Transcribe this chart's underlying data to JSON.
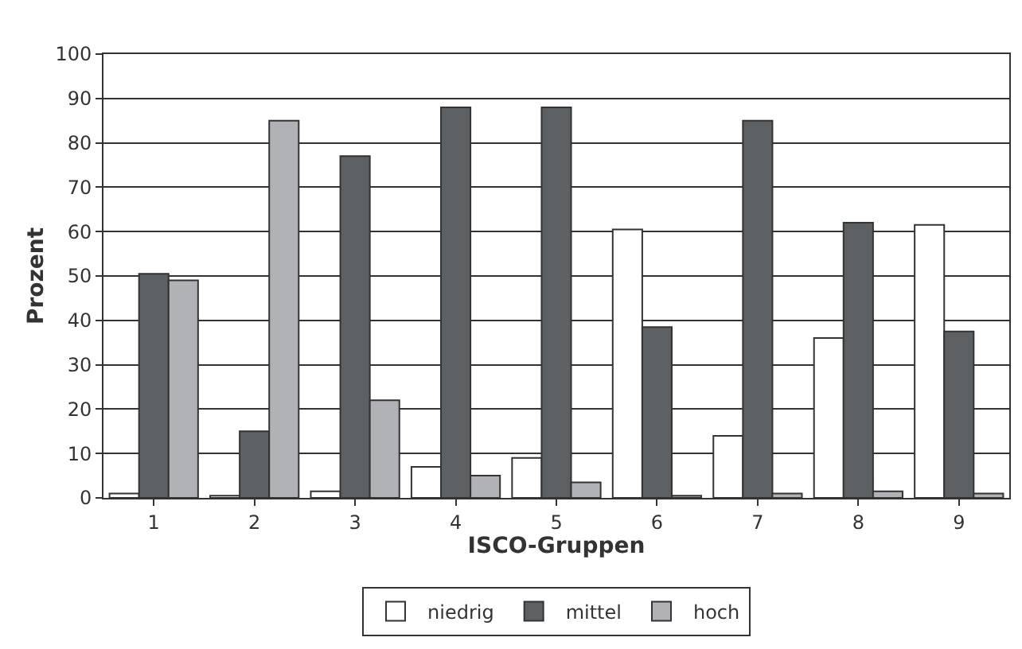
{
  "chart_data": {
    "type": "bar",
    "xlabel": "ISCO-Gruppen",
    "ylabel": "Prozent",
    "categories": [
      "1",
      "2",
      "3",
      "4",
      "5",
      "6",
      "7",
      "8",
      "9"
    ],
    "series": [
      {
        "name": "niedrig",
        "color": "#ffffff",
        "values": [
          1,
          0.5,
          1.5,
          7,
          9,
          60.5,
          14,
          36,
          61.5
        ]
      },
      {
        "name": "mittel",
        "color": "#5d6063",
        "values": [
          50.5,
          15,
          77,
          88,
          88,
          38.5,
          85,
          62,
          37.5
        ]
      },
      {
        "name": "hoch",
        "color": "#b1b2b6",
        "values": [
          49,
          85,
          22,
          5,
          3.5,
          0.5,
          1,
          1.5,
          1
        ]
      }
    ],
    "ylim": [
      0,
      100
    ],
    "yticks": [
      0,
      10,
      20,
      30,
      40,
      50,
      60,
      70,
      80,
      90,
      100
    ],
    "grid": "y",
    "legend": "bottom"
  }
}
